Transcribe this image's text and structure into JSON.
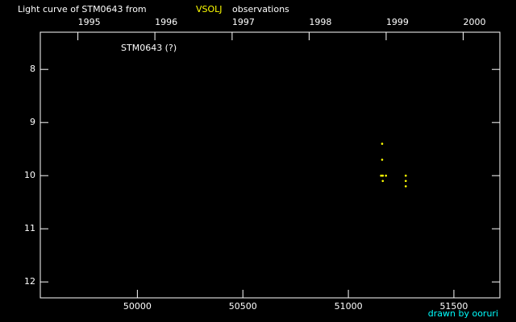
{
  "chart_data": {
    "type": "scatter",
    "title": "Light curve of STM0643 from",
    "title_source": "VSOLJ",
    "title_suffix": "observations",
    "annotation": "STM0643 (?)",
    "credit": "drawn by ooruri",
    "x": [
      51160,
      51160,
      51155,
      51163,
      51163,
      51178,
      51272,
      51272,
      51272
    ],
    "values": [
      9.4,
      9.7,
      10.0,
      10.0,
      10.1,
      10.0,
      10.0,
      10.1,
      10.2
    ],
    "color": "#ffff00",
    "xlim": [
      49540,
      51718
    ],
    "xticks": [
      50000,
      50500,
      51000,
      51500
    ],
    "x2ticks": [
      {
        "value": 49718,
        "label": "1995"
      },
      {
        "value": 50083,
        "label": "1996"
      },
      {
        "value": 50449,
        "label": "1997"
      },
      {
        "value": 50814,
        "label": "1998"
      },
      {
        "value": 51179,
        "label": "1999"
      },
      {
        "value": 51544,
        "label": "2000"
      }
    ],
    "ylim": [
      12.3,
      7.3
    ],
    "yticks": [
      8,
      9,
      10,
      11,
      12
    ]
  }
}
